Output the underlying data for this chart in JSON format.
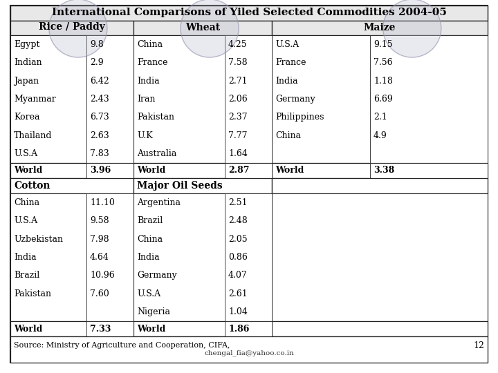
{
  "title": "International Comparisons of Yiled Selected Commodities 2004-05",
  "col_headers": [
    "Rice / Paddy",
    "Wheat",
    "Maize"
  ],
  "rice_countries": [
    "Egypt",
    "Indian",
    "Japan",
    "Myanmar",
    "Korea",
    "Thailand",
    "U.S.A"
  ],
  "rice_values": [
    "9.8",
    "2.9",
    "6.42",
    "2.43",
    "6.73",
    "2.63",
    "7.83"
  ],
  "rice_world": "3.96",
  "wheat_countries": [
    "China",
    "France",
    "India",
    "Iran",
    "Pakistan",
    "U.K",
    "Australia"
  ],
  "wheat_values": [
    "4.25",
    "7.58",
    "2.71",
    "2.06",
    "2.37",
    "7.77",
    "1.64"
  ],
  "wheat_world": "2.87",
  "maize_countries": [
    "U.S.A",
    "France",
    "India",
    "Germany",
    "Philippines",
    "China"
  ],
  "maize_values": [
    "9.15",
    "7.56",
    "1.18",
    "6.69",
    "2.1",
    "4.9"
  ],
  "maize_world": "3.38",
  "cotton_label": "Cotton",
  "cotton_countries": [
    "China",
    "U.S.A",
    "Uzbekistan",
    "India",
    "Brazil",
    "Pakistan"
  ],
  "cotton_values": [
    "11.10",
    "9.58",
    "7.98",
    "4.64",
    "10.96",
    "7.60"
  ],
  "cotton_world": "7.33",
  "oilseeds_label": "Major Oil Seeds",
  "oilseeds_countries": [
    "Argentina",
    "Brazil",
    "China",
    "India",
    "Germany",
    "U.S.A",
    "Nigeria"
  ],
  "oilseeds_values": [
    "2.51",
    "2.48",
    "2.05",
    "0.86",
    "4.07",
    "2.61",
    "1.04"
  ],
  "oilseeds_world": "1.86",
  "footer": "Source: Ministry of Agriculture and Cooperation, CIFA,",
  "footer2": "chengal_fia@yahoo.co.in",
  "page_num": "12"
}
